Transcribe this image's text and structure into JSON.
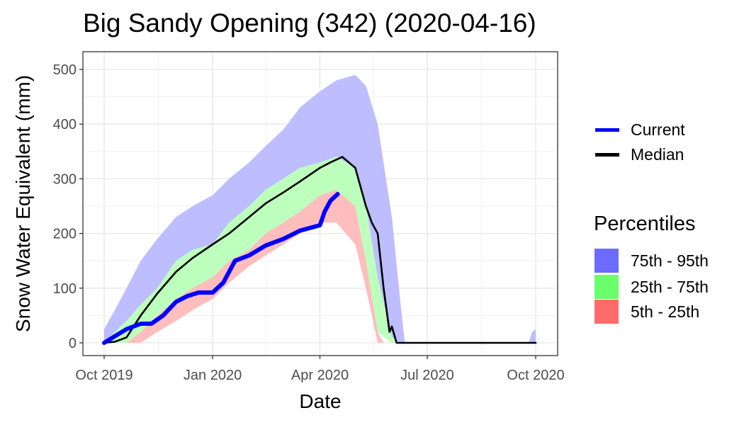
{
  "chart_data": {
    "type": "area",
    "title": "Big Sandy Opening (342) (2020-04-16)",
    "xlabel": "Date",
    "ylabel": "Snow Water Equivalent (mm)",
    "x_range": [
      "2019-10-01",
      "2020-10-01"
    ],
    "ylim": [
      -22,
      530
    ],
    "x_ticks": [
      "Oct 2019",
      "Jan 2020",
      "Apr 2020",
      "Jul 2020",
      "Oct 2020"
    ],
    "x_tick_dates": [
      "2019-10-01",
      "2020-01-01",
      "2020-04-01",
      "2020-07-01",
      "2020-10-01"
    ],
    "y_ticks": [
      0,
      100,
      200,
      300,
      400,
      500
    ],
    "grid": true,
    "legend_position": "right",
    "legend": {
      "lines": [
        {
          "name": "Current",
          "color": "#0000ff"
        },
        {
          "name": "Median",
          "color": "#000000"
        }
      ],
      "percentiles_title": "Percentiles",
      "bands": [
        {
          "name": "75th - 95th",
          "color": "#6b6bff"
        },
        {
          "name": "25th - 75th",
          "color": "#6bff6b"
        },
        {
          "name": "5th - 25th",
          "color": "#ff6b6b"
        }
      ]
    },
    "series": [
      {
        "name": "75th - 95th",
        "kind": "band",
        "color": "#bdbdff",
        "x": [
          "2019-10-01",
          "2019-10-10",
          "2019-10-20",
          "2019-11-01",
          "2019-11-15",
          "2019-12-01",
          "2019-12-15",
          "2020-01-01",
          "2020-01-15",
          "2020-02-01",
          "2020-02-15",
          "2020-03-01",
          "2020-03-15",
          "2020-04-01",
          "2020-04-15",
          "2020-05-01",
          "2020-05-10",
          "2020-05-20",
          "2020-06-01",
          "2020-06-08",
          "2020-06-12",
          "2020-09-25",
          "2020-09-28",
          "2020-10-01"
        ],
        "upper": [
          25,
          60,
          100,
          150,
          190,
          230,
          250,
          270,
          300,
          330,
          360,
          390,
          430,
          460,
          480,
          490,
          470,
          400,
          230,
          80,
          0,
          0,
          20,
          25
        ],
        "lower": [
          0,
          20,
          40,
          70,
          100,
          150,
          170,
          180,
          220,
          250,
          280,
          300,
          320,
          330,
          340,
          320,
          250,
          120,
          10,
          0,
          0,
          0,
          0,
          0
        ]
      },
      {
        "name": "25th - 75th",
        "kind": "band",
        "color": "#bdffbd",
        "x": [
          "2019-10-01",
          "2019-10-10",
          "2019-10-20",
          "2019-11-01",
          "2019-11-15",
          "2019-12-01",
          "2019-12-15",
          "2020-01-01",
          "2020-01-15",
          "2020-02-01",
          "2020-02-15",
          "2020-03-01",
          "2020-03-15",
          "2020-04-01",
          "2020-04-15",
          "2020-05-01",
          "2020-05-10",
          "2020-05-20",
          "2020-06-01",
          "2020-06-05"
        ],
        "upper": [
          0,
          20,
          40,
          70,
          100,
          150,
          170,
          180,
          220,
          250,
          280,
          300,
          320,
          330,
          340,
          320,
          250,
          120,
          10,
          0
        ],
        "lower": [
          0,
          0,
          0,
          20,
          50,
          80,
          100,
          120,
          150,
          170,
          200,
          220,
          240,
          270,
          280,
          250,
          150,
          20,
          0,
          0
        ]
      },
      {
        "name": "5th - 25th",
        "kind": "band",
        "color": "#ffbdbd",
        "x": [
          "2019-10-01",
          "2019-10-10",
          "2019-10-20",
          "2019-11-01",
          "2019-11-15",
          "2019-12-01",
          "2019-12-15",
          "2020-01-01",
          "2020-01-15",
          "2020-02-01",
          "2020-02-15",
          "2020-03-01",
          "2020-03-15",
          "2020-04-01",
          "2020-04-15",
          "2020-05-01",
          "2020-05-10",
          "2020-05-20",
          "2020-05-25"
        ],
        "upper": [
          0,
          0,
          0,
          20,
          50,
          80,
          100,
          120,
          150,
          170,
          200,
          220,
          240,
          270,
          280,
          250,
          150,
          20,
          0
        ],
        "lower": [
          0,
          0,
          0,
          0,
          20,
          40,
          60,
          80,
          110,
          140,
          160,
          180,
          200,
          220,
          220,
          180,
          100,
          0,
          0
        ]
      },
      {
        "name": "Median",
        "kind": "line",
        "color": "#000000",
        "x": [
          "2019-10-01",
          "2019-10-10",
          "2019-10-20",
          "2019-11-01",
          "2019-11-15",
          "2019-12-01",
          "2019-12-15",
          "2020-01-01",
          "2020-01-15",
          "2020-02-01",
          "2020-02-15",
          "2020-03-01",
          "2020-03-15",
          "2020-04-01",
          "2020-04-10",
          "2020-04-20",
          "2020-05-01",
          "2020-05-10",
          "2020-05-15",
          "2020-05-20",
          "2020-05-25",
          "2020-05-30",
          "2020-06-01",
          "2020-06-05",
          "2020-10-01"
        ],
        "values": [
          0,
          2,
          10,
          50,
          90,
          130,
          155,
          180,
          200,
          230,
          255,
          275,
          295,
          320,
          330,
          340,
          320,
          250,
          220,
          200,
          100,
          20,
          30,
          0,
          0
        ]
      },
      {
        "name": "Current",
        "kind": "line",
        "color": "#0000ff",
        "x": [
          "2019-10-01",
          "2019-10-10",
          "2019-10-20",
          "2019-11-01",
          "2019-11-10",
          "2019-11-20",
          "2019-12-01",
          "2019-12-10",
          "2019-12-20",
          "2020-01-01",
          "2020-01-10",
          "2020-01-20",
          "2020-02-01",
          "2020-02-15",
          "2020-03-01",
          "2020-03-15",
          "2020-04-01",
          "2020-04-05",
          "2020-04-10",
          "2020-04-16"
        ],
        "values": [
          0,
          12,
          25,
          35,
          35,
          50,
          75,
          85,
          92,
          92,
          110,
          150,
          160,
          178,
          190,
          205,
          215,
          240,
          260,
          272
        ]
      }
    ]
  }
}
